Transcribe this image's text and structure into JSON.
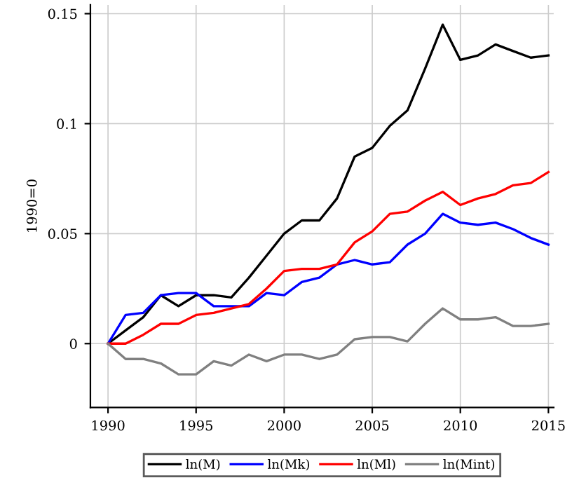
{
  "chart_data": {
    "type": "line",
    "ylabel": "1990=0",
    "x": [
      1990,
      1991,
      1992,
      1993,
      1994,
      1995,
      1996,
      1997,
      1998,
      1999,
      2000,
      2001,
      2002,
      2003,
      2004,
      2005,
      2006,
      2007,
      2008,
      2009,
      2010,
      2011,
      2012,
      2013,
      2014,
      2015
    ],
    "series": [
      {
        "name": "ln(M)",
        "color": "#000000",
        "values": [
          0,
          0.006,
          0.012,
          0.022,
          0.017,
          0.022,
          0.022,
          0.021,
          0.03,
          0.04,
          0.05,
          0.056,
          0.056,
          0.066,
          0.085,
          0.089,
          0.099,
          0.106,
          0.125,
          0.145,
          0.129,
          0.131,
          0.136,
          0.133,
          0.13,
          0.131
        ]
      },
      {
        "name": "ln(Mk)",
        "color": "#0000ff",
        "values": [
          0,
          0.013,
          0.014,
          0.022,
          0.023,
          0.023,
          0.017,
          0.017,
          0.017,
          0.023,
          0.022,
          0.028,
          0.03,
          0.036,
          0.038,
          0.036,
          0.037,
          0.045,
          0.05,
          0.059,
          0.055,
          0.054,
          0.055,
          0.052,
          0.048,
          0.045
        ]
      },
      {
        "name": "ln(Ml)",
        "color": "#ff0000",
        "values": [
          0,
          0,
          0.004,
          0.009,
          0.009,
          0.013,
          0.014,
          0.016,
          0.018,
          0.025,
          0.033,
          0.034,
          0.034,
          0.036,
          0.046,
          0.051,
          0.059,
          0.06,
          0.065,
          0.069,
          0.063,
          0.066,
          0.068,
          0.072,
          0.073,
          0.078
        ]
      },
      {
        "name": "ln(Mint)",
        "color": "#808080",
        "values": [
          0,
          -0.007,
          -0.007,
          -0.009,
          -0.014,
          -0.014,
          -0.008,
          -0.01,
          -0.005,
          -0.008,
          -0.005,
          -0.005,
          -0.007,
          -0.005,
          0.002,
          0.003,
          0.003,
          0.001,
          0.009,
          0.016,
          0.011,
          0.011,
          0.012,
          0.008,
          0.008,
          0.009
        ]
      }
    ],
    "xlim": [
      1989,
      2015.3
    ],
    "xticks": [
      1990,
      1995,
      2000,
      2005,
      2010,
      2015
    ],
    "ylim": [
      -0.029,
      0.154
    ],
    "yticks": [
      0,
      0.05,
      0.1,
      0.15
    ],
    "grid": true,
    "legend": "bottom",
    "marker": "none",
    "line_style": "solid"
  }
}
